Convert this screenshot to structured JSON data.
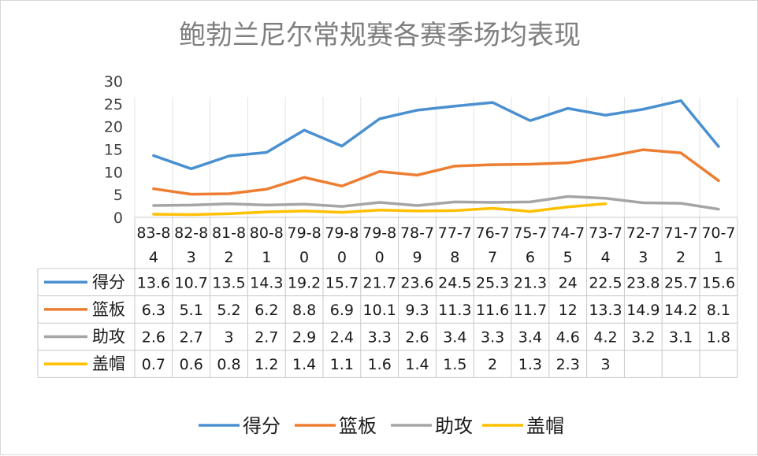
{
  "chart_data": {
    "type": "line",
    "title": "鲍勃兰尼尔常规赛各赛季场均表现",
    "xlabel": "",
    "ylabel": "",
    "ylim": [
      0,
      30
    ],
    "yticks": [
      "0",
      "5",
      "10",
      "15",
      "20",
      "25",
      "30"
    ],
    "grid": "vertical gridlines between categories",
    "legend_position": "bottom",
    "categories": [
      "83-84",
      "82-83",
      "81-82",
      "80-81",
      "79-80",
      "79-80",
      "79-80",
      "78-79",
      "77-78",
      "76-77",
      "75-76",
      "74-75",
      "73-74",
      "72-73",
      "71-72",
      "70-71"
    ],
    "category_lines": [
      [
        "83-8",
        "4"
      ],
      [
        "82-8",
        "3"
      ],
      [
        "81-8",
        "2"
      ],
      [
        "80-8",
        "1"
      ],
      [
        "79-8",
        "0"
      ],
      [
        "79-8",
        "0"
      ],
      [
        "79-8",
        "0"
      ],
      [
        "78-7",
        "9"
      ],
      [
        "77-7",
        "8"
      ],
      [
        "76-7",
        "7"
      ],
      [
        "75-7",
        "6"
      ],
      [
        "74-7",
        "5"
      ],
      [
        "73-7",
        "4"
      ],
      [
        "72-7",
        "3"
      ],
      [
        "71-7",
        "2"
      ],
      [
        "70-7",
        "1"
      ]
    ],
    "series": [
      {
        "name": "得分",
        "color": "#4a90d0",
        "values": [
          13.6,
          10.7,
          13.5,
          14.3,
          19.2,
          15.7,
          21.7,
          23.6,
          24.5,
          25.3,
          21.3,
          24,
          22.5,
          23.8,
          25.7,
          15.6
        ],
        "labels": [
          "13.6",
          "10.7",
          "13.5",
          "14.3",
          "19.2",
          "15.7",
          "21.7",
          "23.6",
          "24.5",
          "25.3",
          "21.3",
          "24",
          "22.5",
          "23.8",
          "25.7",
          "15.6"
        ]
      },
      {
        "name": "篮板",
        "color": "#ed7d31",
        "values": [
          6.3,
          5.1,
          5.2,
          6.2,
          8.8,
          6.9,
          10.1,
          9.3,
          11.3,
          11.6,
          11.7,
          12,
          13.3,
          14.9,
          14.2,
          8.1
        ],
        "labels": [
          "6.3",
          "5.1",
          "5.2",
          "6.2",
          "8.8",
          "6.9",
          "10.1",
          "9.3",
          "11.3",
          "11.6",
          "11.7",
          "12",
          "13.3",
          "14.9",
          "14.2",
          "8.1"
        ]
      },
      {
        "name": "助攻",
        "color": "#a5a5a5",
        "values": [
          2.6,
          2.7,
          3,
          2.7,
          2.9,
          2.4,
          3.3,
          2.6,
          3.4,
          3.3,
          3.4,
          4.6,
          4.2,
          3.2,
          3.1,
          1.8
        ],
        "labels": [
          "2.6",
          "2.7",
          "3",
          "2.7",
          "2.9",
          "2.4",
          "3.3",
          "2.6",
          "3.4",
          "3.3",
          "3.4",
          "4.6",
          "4.2",
          "3.2",
          "3.1",
          "1.8"
        ]
      },
      {
        "name": "盖帽",
        "color": "#ffc000",
        "values": [
          0.7,
          0.6,
          0.8,
          1.2,
          1.4,
          1.1,
          1.6,
          1.4,
          1.5,
          2,
          1.3,
          2.3,
          3,
          null,
          null,
          null
        ],
        "labels": [
          "0.7",
          "0.6",
          "0.8",
          "1.2",
          "1.4",
          "1.1",
          "1.6",
          "1.4",
          "1.5",
          "2",
          "1.3",
          "2.3",
          "3",
          "",
          "",
          ""
        ]
      }
    ]
  }
}
